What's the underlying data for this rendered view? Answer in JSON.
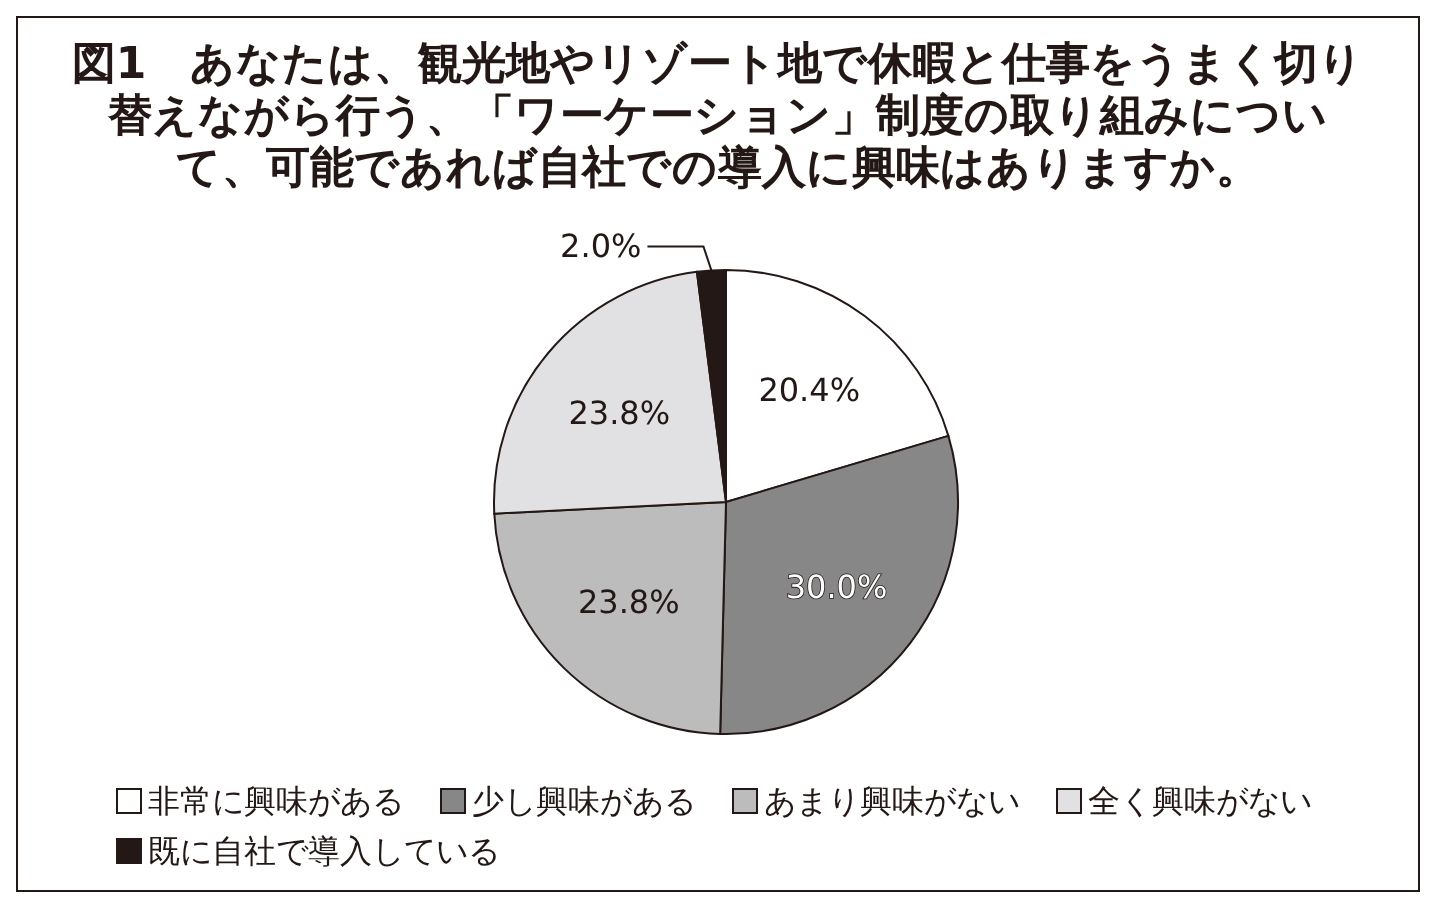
{
  "chart_data": {
    "type": "pie",
    "title": "図1　あなたは、観光地やリゾート地で休暇と仕事をうまく切り替えながら行う、「ワーケーション」制度の取り組みについて、可能であれば自社での導入に興味はありますか。",
    "categories": [
      "非常に興味がある",
      "少し興味がある",
      "あまり興味がない",
      "全く興味がない",
      "既に自社で導入している"
    ],
    "values": [
      20.4,
      30.0,
      23.8,
      23.8,
      2.0
    ],
    "colors": [
      "#ffffff",
      "#878787",
      "#bcbcbc",
      "#e1e1e3",
      "#231815"
    ],
    "value_labels": [
      "20.4%",
      "30.0%",
      "23.8%",
      "23.8%",
      "2.0%"
    ],
    "legend": "bottom"
  }
}
